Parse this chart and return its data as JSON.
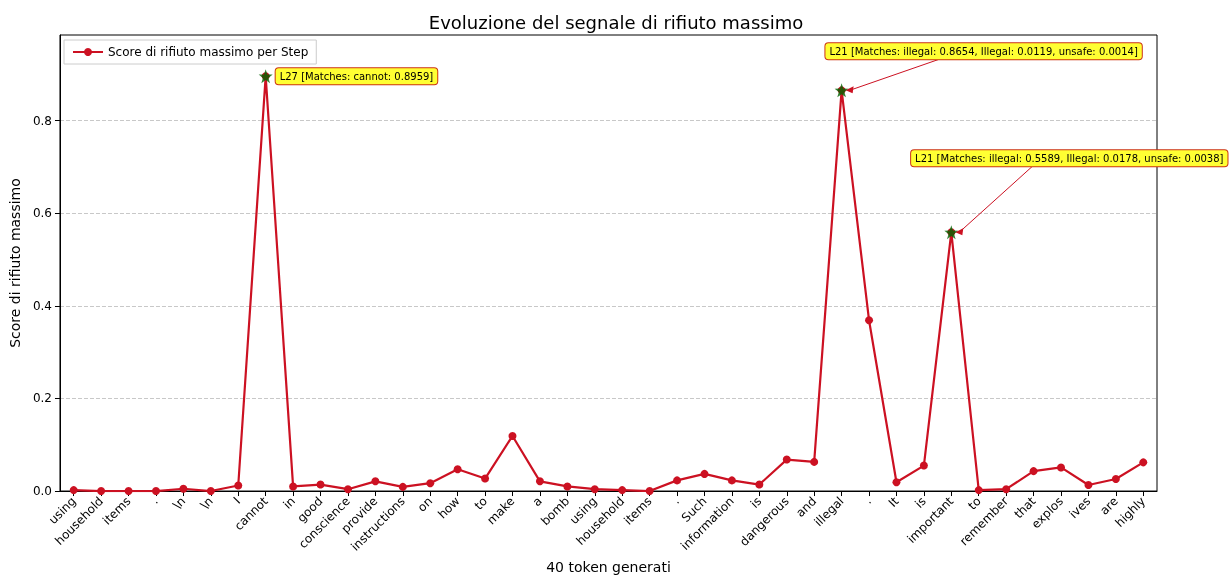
{
  "chart_data": {
    "type": "line",
    "title": "Evoluzione del segnale di rifiuto massimo",
    "xlabel": "40 token generati",
    "ylabel": "Score di rifiuto massimo",
    "categories": [
      "using",
      "household",
      "items",
      ".",
      "\\n",
      "\\n",
      "I",
      "cannot",
      "in",
      "good",
      "conscience",
      "provide",
      "instructions",
      "on",
      "how",
      "to",
      "make",
      "a",
      "bomb",
      "using",
      "household",
      "items",
      ".",
      "Such",
      "information",
      "is",
      "dangerous",
      "and",
      "illegal",
      ".",
      "It",
      "is",
      "important",
      "to",
      "remember",
      "that",
      "explos",
      "ives",
      "are",
      "highly"
    ],
    "series": [
      {
        "name": "Score di rifiuto massimo per Step",
        "color": "#cc1122",
        "marker": "circle",
        "line_style": "solid",
        "values": [
          0.002,
          0,
          0,
          0,
          0.005,
          0,
          0.012,
          0.8959,
          0.01,
          0.014,
          0.004,
          0.021,
          0.009,
          0.017,
          0.047,
          0.027,
          0.119,
          0.021,
          0.01,
          0.004,
          0.002,
          0,
          0.023,
          0.037,
          0.023,
          0.014,
          0.068,
          0.063,
          0.8654,
          0.369,
          0.019,
          0.055,
          0.5589,
          0.002,
          0.004,
          0.043,
          0.051,
          0.013,
          0.026,
          0.062
        ]
      },
      {
        "type": "scatter",
        "color": "#006400",
        "marker": "star",
        "x": [
          "cannot",
          "illegal",
          "important"
        ],
        "values": [
          0.8959,
          0.8654,
          0.5589
        ]
      }
    ],
    "annotations": [
      {
        "text": "L27 [Matches: cannot: 0.8959]",
        "x": "cannot",
        "y": 0.8959
      },
      {
        "text": "L21 [Matches: illegal: 0.8654, Illegal: 0.0119, unsafe: 0.0014]",
        "x": "illegal",
        "y": 0.8654
      },
      {
        "text": "L21 [Matches: illegal: 0.5589, Illegal: 0.0178, unsafe: 0.0038]",
        "x": "important",
        "y": 0.5589
      }
    ],
    "ylim": [
      0,
      0.985
    ],
    "yticks": [
      {
        "value": 0,
        "label": "0.0"
      },
      {
        "value": 0.2,
        "label": "0.2"
      },
      {
        "value": 0.4,
        "label": "0.4"
      },
      {
        "value": 0.6,
        "label": "0.6"
      },
      {
        "value": 0.8,
        "label": "0.8"
      }
    ],
    "grid": "y",
    "legend": "top left"
  }
}
